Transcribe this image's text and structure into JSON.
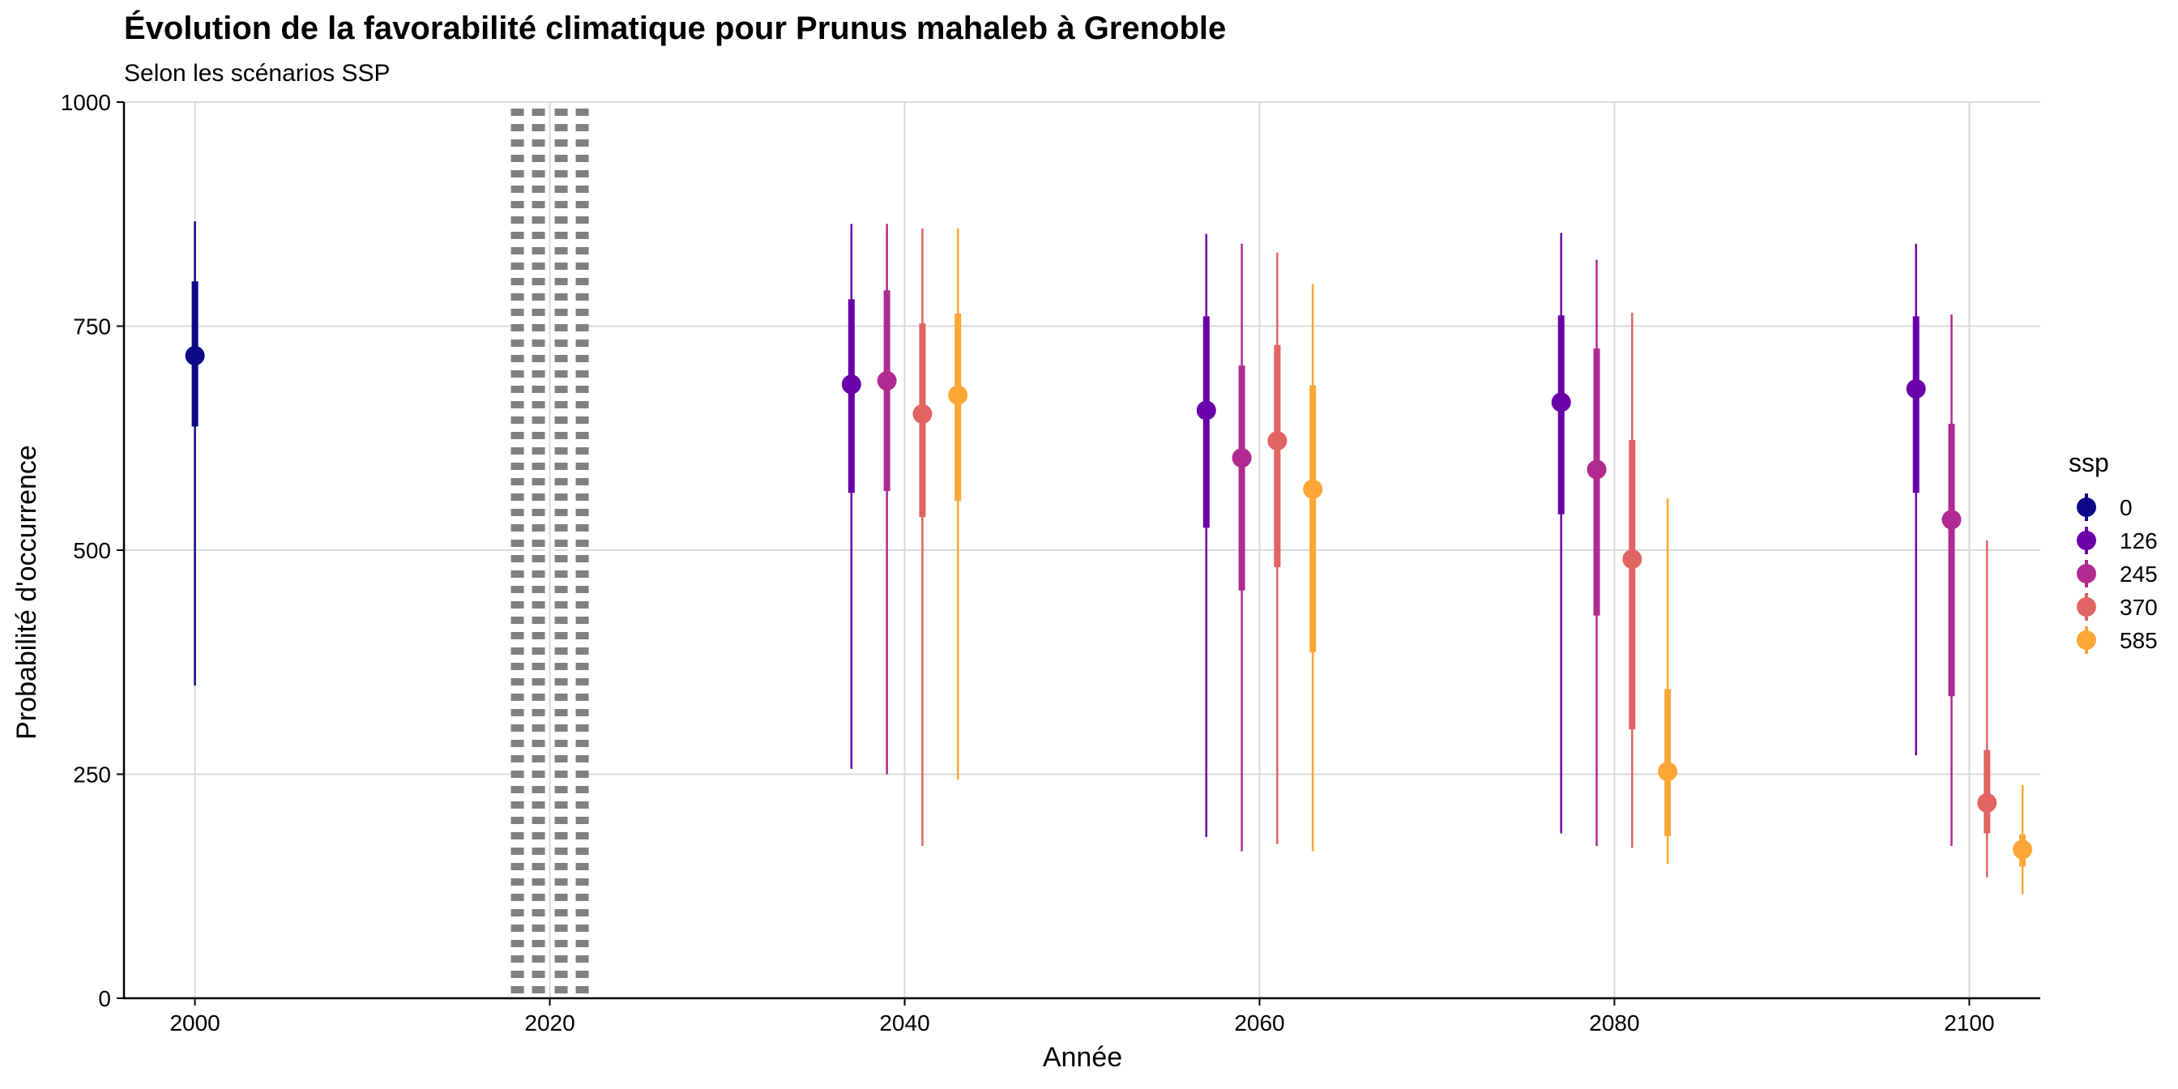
{
  "chart_data": {
    "type": "scatter",
    "title": "Évolution de la favorabilité climatique pour Prunus mahaleb à Grenoble",
    "subtitle": "Selon les scénarios SSP",
    "xlabel": "Année",
    "ylabel": "Probabilité d'occurrence",
    "xlim": [
      1996,
      2104
    ],
    "ylim": [
      0,
      1000
    ],
    "x_ticks": [
      2000,
      2020,
      2040,
      2060,
      2080,
      2100
    ],
    "y_ticks": [
      0,
      250,
      500,
      750,
      1000
    ],
    "grid": true,
    "reference_line": {
      "x": 2020,
      "style": "dotted",
      "color": "#808080"
    },
    "legend": {
      "title": "ssp",
      "position": "right"
    },
    "series": [
      {
        "name": "0",
        "color": "#0d0887",
        "points": [
          {
            "x": 2000,
            "y": 717,
            "inner": [
              638,
              800
            ],
            "outer": [
              349,
              867
            ]
          }
        ]
      },
      {
        "name": "126",
        "color": "#6a00a8",
        "points": [
          {
            "x": 2040,
            "y": 685,
            "inner": [
              564,
              780
            ],
            "outer": [
              256,
              864
            ]
          },
          {
            "x": 2060,
            "y": 656,
            "inner": [
              525,
              761
            ],
            "outer": [
              180,
              853
            ]
          },
          {
            "x": 2080,
            "y": 665,
            "inner": [
              540,
              762
            ],
            "outer": [
              184,
              854
            ]
          },
          {
            "x": 2100,
            "y": 680,
            "inner": [
              564,
              761
            ],
            "outer": [
              271,
              842
            ]
          }
        ]
      },
      {
        "name": "245",
        "color": "#b12a90",
        "points": [
          {
            "x": 2040,
            "y": 689,
            "inner": [
              566,
              790
            ],
            "outer": [
              250,
              864
            ]
          },
          {
            "x": 2060,
            "y": 603,
            "inner": [
              455,
              706
            ],
            "outer": [
              164,
              842
            ]
          },
          {
            "x": 2080,
            "y": 590,
            "inner": [
              427,
              725
            ],
            "outer": [
              170,
              824
            ]
          },
          {
            "x": 2100,
            "y": 534,
            "inner": [
              337,
              641
            ],
            "outer": [
              170,
              763
            ]
          }
        ]
      },
      {
        "name": "370",
        "color": "#e16462",
        "points": [
          {
            "x": 2040,
            "y": 652,
            "inner": [
              537,
              753
            ],
            "outer": [
              170,
              859
            ]
          },
          {
            "x": 2060,
            "y": 622,
            "inner": [
              481,
              729
            ],
            "outer": [
              172,
              832
            ]
          },
          {
            "x": 2080,
            "y": 490,
            "inner": [
              300,
              623
            ],
            "outer": [
              168,
              765
            ]
          },
          {
            "x": 2100,
            "y": 218,
            "inner": [
              184,
              277
            ],
            "outer": [
              135,
              511
            ]
          }
        ]
      },
      {
        "name": "585",
        "color": "#fca636",
        "points": [
          {
            "x": 2040,
            "y": 673,
            "inner": [
              555,
              764
            ],
            "outer": [
              244,
              859
            ]
          },
          {
            "x": 2060,
            "y": 568,
            "inner": [
              386,
              684
            ],
            "outer": [
              164,
              797
            ]
          },
          {
            "x": 2080,
            "y": 253,
            "inner": [
              181,
              345
            ],
            "outer": [
              150,
              558
            ]
          },
          {
            "x": 2100,
            "y": 166,
            "inner": [
              147,
              183
            ],
            "outer": [
              116,
              238
            ]
          }
        ]
      }
    ]
  }
}
